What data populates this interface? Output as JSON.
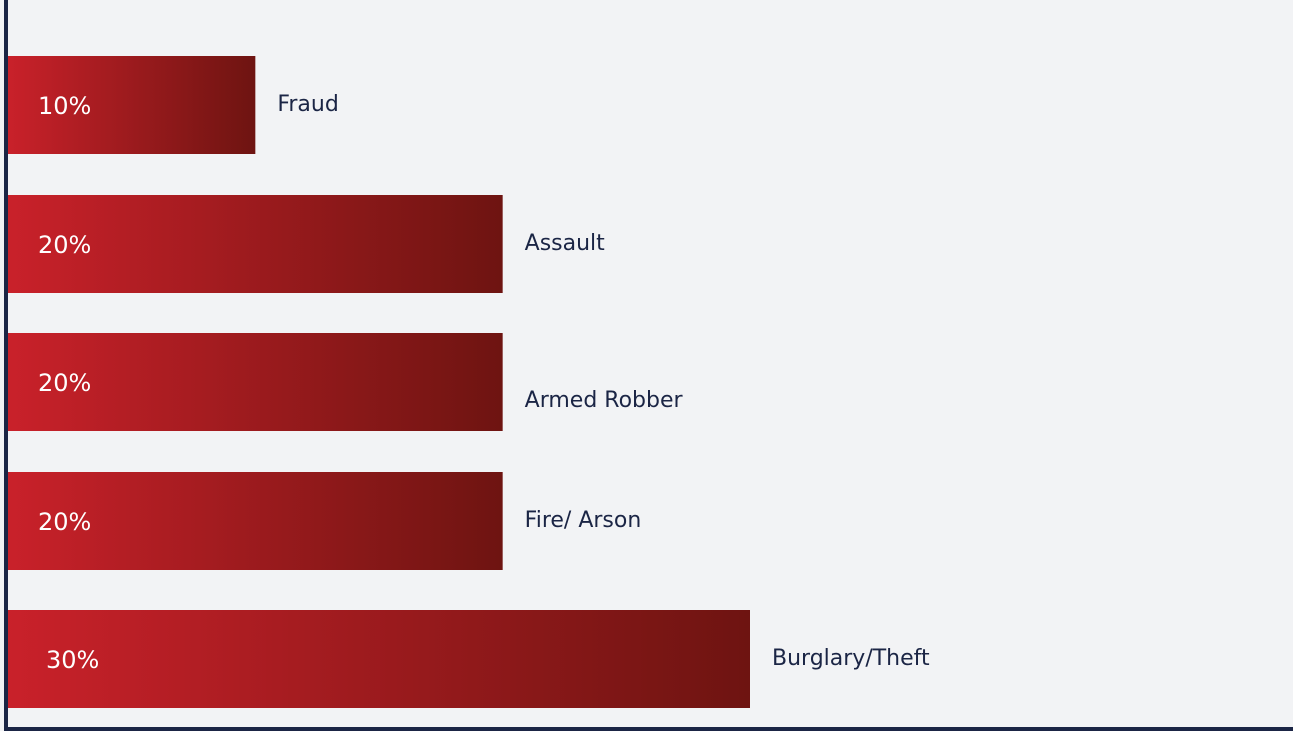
{
  "chart_data": {
    "type": "bar",
    "orientation": "horizontal",
    "categories": [
      "Fraud",
      "Assault",
      "Armed Robber",
      "Fire/ Arson",
      "Burglary/Theft"
    ],
    "values": [
      10,
      20,
      20,
      20,
      30
    ],
    "value_labels": [
      "10%",
      "20%",
      "20%",
      "20%",
      "30%"
    ],
    "xlim": [
      0,
      30
    ],
    "grid": false,
    "title": "",
    "xlabel": "",
    "ylabel": "",
    "colors": {
      "bar_start": "#c9212a",
      "bar_end": "#6e1411",
      "axis": "#1b2545",
      "label_text": "#1b2545",
      "value_text": "#ffffff",
      "background": "#f2f3f5"
    }
  }
}
